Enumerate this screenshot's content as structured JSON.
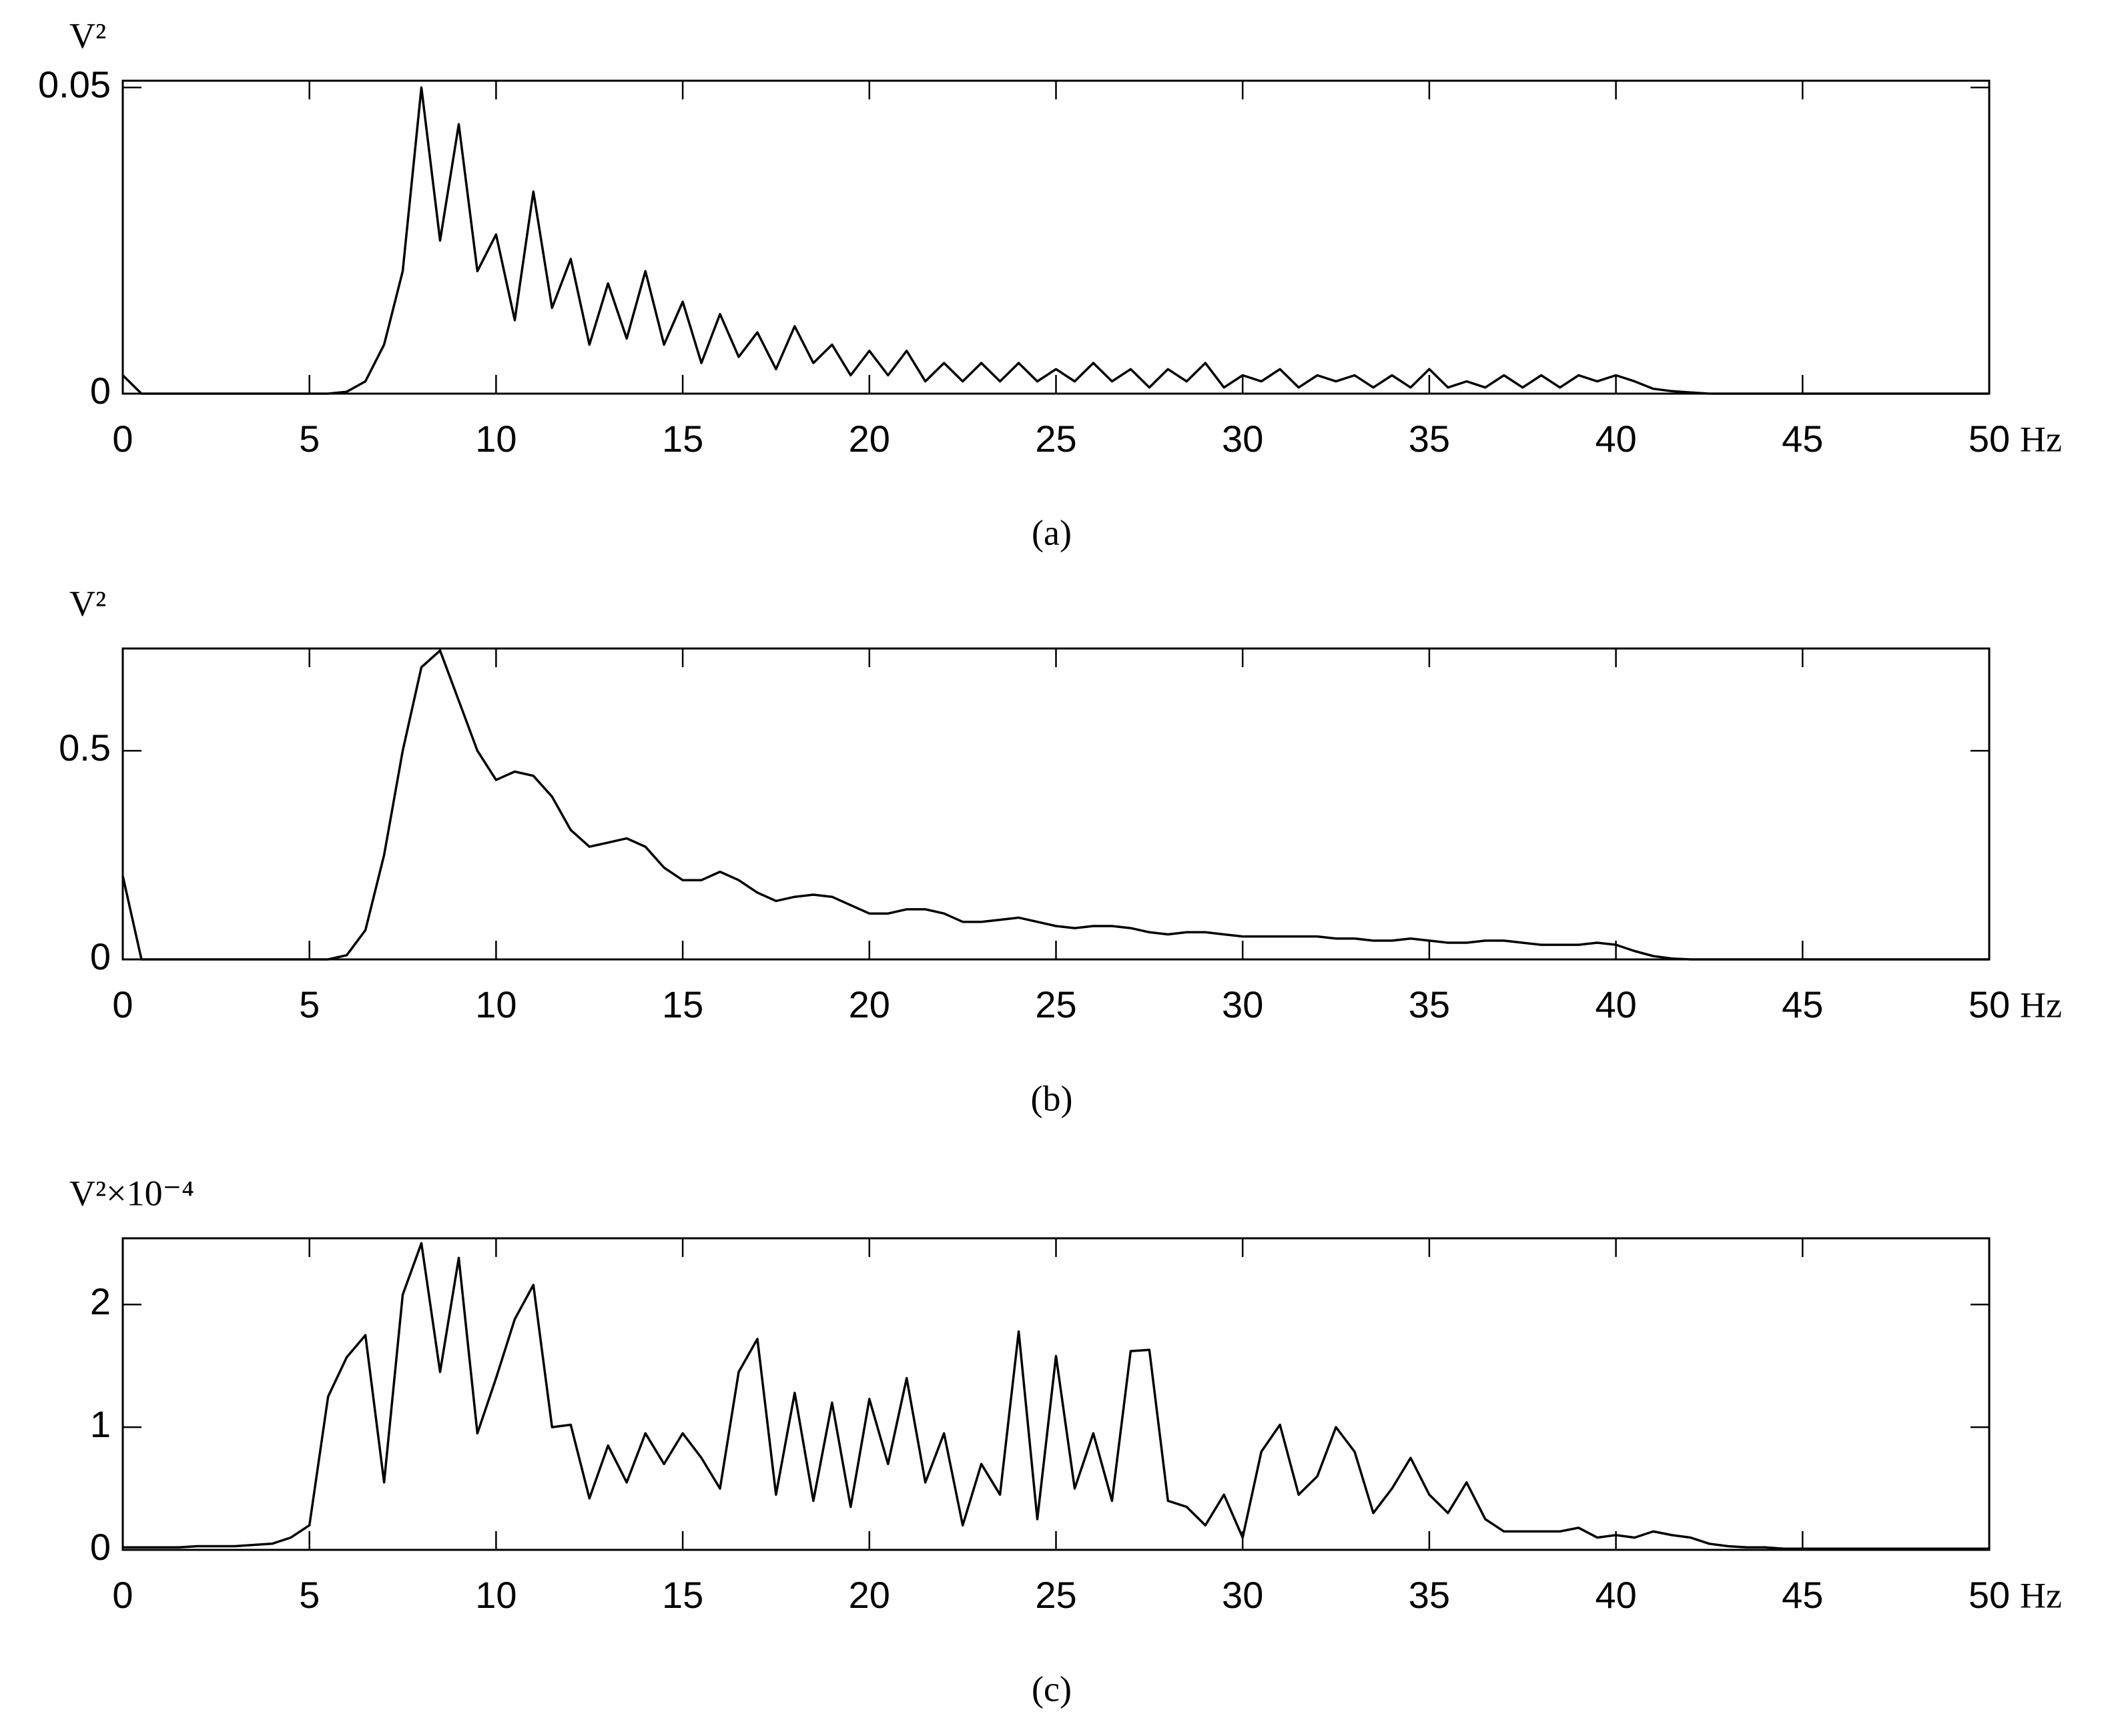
{
  "chart_data": [
    {
      "type": "line",
      "y_label": "V²",
      "x_unit": "Hz",
      "caption": "(a)",
      "color": "#000000",
      "xlim": [
        0,
        50
      ],
      "ylim": [
        0,
        0.0511
      ],
      "xticks": [
        0,
        5,
        10,
        15,
        20,
        25,
        30,
        35,
        40,
        45,
        50
      ],
      "yticks": [
        0,
        0.05
      ],
      "x": [
        0,
        0.5,
        1,
        1.5,
        2,
        2.5,
        3,
        3.5,
        4,
        4.5,
        5,
        5.5,
        6,
        6.5,
        7,
        7.5,
        8,
        8.5,
        9,
        9.5,
        10,
        10.5,
        11,
        11.5,
        12,
        12.5,
        13,
        13.5,
        14,
        14.5,
        15,
        15.5,
        16,
        16.5,
        17,
        17.5,
        18,
        18.5,
        19,
        19.5,
        20,
        20.5,
        21,
        21.5,
        22,
        22.5,
        23,
        23.5,
        24,
        24.5,
        25,
        25.5,
        26,
        26.5,
        27,
        27.5,
        28,
        28.5,
        29,
        29.5,
        30,
        30.5,
        31,
        31.5,
        32,
        32.5,
        33,
        33.5,
        34,
        34.5,
        35,
        35.5,
        36,
        36.5,
        37,
        37.5,
        38,
        38.5,
        39,
        39.5,
        40,
        40.5,
        41,
        41.5,
        42,
        42.5,
        43,
        43.5,
        44,
        44.5,
        45,
        45.5,
        46,
        46.5,
        47,
        47.5,
        48,
        48.5,
        49,
        49.5,
        50
      ],
      "values": [
        0.003,
        0,
        0,
        0,
        0,
        0,
        0,
        0,
        0,
        0,
        0,
        0,
        0.0003,
        0.002,
        0.008,
        0.02,
        0.05,
        0.025,
        0.044,
        0.02,
        0.026,
        0.012,
        0.033,
        0.014,
        0.022,
        0.008,
        0.018,
        0.009,
        0.02,
        0.008,
        0.015,
        0.005,
        0.013,
        0.006,
        0.01,
        0.004,
        0.011,
        0.005,
        0.008,
        0.003,
        0.007,
        0.003,
        0.007,
        0.002,
        0.005,
        0.002,
        0.005,
        0.002,
        0.005,
        0.002,
        0.004,
        0.002,
        0.005,
        0.002,
        0.004,
        0.001,
        0.004,
        0.002,
        0.005,
        0.001,
        0.003,
        0.002,
        0.004,
        0.001,
        0.003,
        0.002,
        0.003,
        0.001,
        0.003,
        0.001,
        0.004,
        0.001,
        0.002,
        0.001,
        0.003,
        0.001,
        0.003,
        0.001,
        0.003,
        0.002,
        0.003,
        0.002,
        0.0008,
        0.0004,
        0.0002,
        0,
        0,
        0,
        0,
        0,
        0,
        0,
        0,
        0,
        0,
        0,
        0,
        0,
        0,
        0,
        0
      ]
    },
    {
      "type": "line",
      "y_label": "V²",
      "x_unit": "Hz",
      "caption": "(b)",
      "color": "#000000",
      "xlim": [
        0,
        50
      ],
      "ylim": [
        0,
        0.745
      ],
      "xticks": [
        0,
        5,
        10,
        15,
        20,
        25,
        30,
        35,
        40,
        45,
        50
      ],
      "yticks": [
        0,
        0.5
      ],
      "x": [
        0,
        0.5,
        1,
        1.5,
        2,
        2.5,
        3,
        3.5,
        4,
        4.5,
        5,
        5.5,
        6,
        6.5,
        7,
        7.5,
        8,
        8.5,
        9,
        9.5,
        10,
        10.5,
        11,
        11.5,
        12,
        12.5,
        13,
        13.5,
        14,
        14.5,
        15,
        15.5,
        16,
        16.5,
        17,
        17.5,
        18,
        18.5,
        19,
        19.5,
        20,
        20.5,
        21,
        21.5,
        22,
        22.5,
        23,
        23.5,
        24,
        24.5,
        25,
        25.5,
        26,
        26.5,
        27,
        27.5,
        28,
        28.5,
        29,
        29.5,
        30,
        30.5,
        31,
        31.5,
        32,
        32.5,
        33,
        33.5,
        34,
        34.5,
        35,
        35.5,
        36,
        36.5,
        37,
        37.5,
        38,
        38.5,
        39,
        39.5,
        40,
        40.5,
        41,
        41.5,
        42,
        42.5,
        43,
        43.5,
        44,
        44.5,
        45,
        45.5,
        46,
        46.5,
        47,
        47.5,
        48,
        48.5,
        49,
        49.5,
        50
      ],
      "values": [
        0.2,
        0,
        0,
        0,
        0,
        0,
        0,
        0,
        0,
        0,
        0,
        0,
        0.01,
        0.07,
        0.25,
        0.5,
        0.7,
        0.74,
        0.62,
        0.5,
        0.43,
        0.45,
        0.44,
        0.39,
        0.31,
        0.27,
        0.28,
        0.29,
        0.27,
        0.22,
        0.19,
        0.19,
        0.21,
        0.19,
        0.16,
        0.14,
        0.15,
        0.155,
        0.15,
        0.13,
        0.11,
        0.11,
        0.12,
        0.12,
        0.11,
        0.09,
        0.09,
        0.095,
        0.1,
        0.09,
        0.08,
        0.075,
        0.08,
        0.08,
        0.075,
        0.065,
        0.06,
        0.065,
        0.065,
        0.06,
        0.055,
        0.055,
        0.055,
        0.055,
        0.055,
        0.05,
        0.05,
        0.045,
        0.045,
        0.05,
        0.045,
        0.04,
        0.04,
        0.045,
        0.045,
        0.04,
        0.035,
        0.035,
        0.035,
        0.04,
        0.035,
        0.02,
        0.008,
        0.002,
        0,
        0,
        0,
        0,
        0,
        0,
        0,
        0,
        0,
        0,
        0,
        0,
        0,
        0,
        0,
        0,
        0
      ]
    },
    {
      "type": "line",
      "y_label": "V²×10⁻⁴",
      "x_unit": "Hz",
      "caption": "(c)",
      "color": "#000000",
      "xlim": [
        0,
        50
      ],
      "ylim": [
        0,
        2.54
      ],
      "xticks": [
        0,
        5,
        10,
        15,
        20,
        25,
        30,
        35,
        40,
        45,
        50
      ],
      "yticks": [
        0,
        1,
        2
      ],
      "x": [
        0,
        0.5,
        1,
        1.5,
        2,
        2.5,
        3,
        3.5,
        4,
        4.5,
        5,
        5.5,
        6,
        6.5,
        7,
        7.5,
        8,
        8.5,
        9,
        9.5,
        10,
        10.5,
        11,
        11.5,
        12,
        12.5,
        13,
        13.5,
        14,
        14.5,
        15,
        15.5,
        16,
        16.5,
        17,
        17.5,
        18,
        18.5,
        19,
        19.5,
        20,
        20.5,
        21,
        21.5,
        22,
        22.5,
        23,
        23.5,
        24,
        24.5,
        25,
        25.5,
        26,
        26.5,
        27,
        27.5,
        28,
        28.5,
        29,
        29.5,
        30,
        30.5,
        31,
        31.5,
        32,
        32.5,
        33,
        33.5,
        34,
        34.5,
        35,
        35.5,
        36,
        36.5,
        37,
        37.5,
        38,
        38.5,
        39,
        39.5,
        40,
        40.5,
        41,
        41.5,
        42,
        42.5,
        43,
        43.5,
        44,
        44.5,
        45,
        45.5,
        46,
        46.5,
        47,
        47.5,
        48,
        48.5,
        49,
        49.5,
        50
      ],
      "values": [
        0.02,
        0.02,
        0.02,
        0.02,
        0.03,
        0.03,
        0.03,
        0.04,
        0.05,
        0.1,
        0.2,
        1.25,
        1.57,
        1.75,
        0.55,
        2.08,
        2.5,
        1.45,
        2.38,
        0.95,
        1.4,
        1.88,
        2.16,
        1.0,
        1.02,
        0.42,
        0.85,
        0.55,
        0.95,
        0.7,
        0.95,
        0.75,
        0.5,
        1.45,
        1.72,
        0.45,
        1.28,
        0.4,
        1.2,
        0.35,
        1.23,
        0.7,
        1.4,
        0.55,
        0.95,
        0.2,
        0.7,
        0.45,
        1.78,
        0.25,
        1.58,
        0.5,
        0.95,
        0.4,
        1.62,
        1.63,
        0.4,
        0.35,
        0.2,
        0.45,
        0.1,
        0.8,
        1.02,
        0.45,
        0.6,
        1.0,
        0.8,
        0.3,
        0.5,
        0.75,
        0.45,
        0.3,
        0.55,
        0.25,
        0.15,
        0.15,
        0.15,
        0.15,
        0.18,
        0.1,
        0.12,
        0.1,
        0.15,
        0.12,
        0.1,
        0.05,
        0.03,
        0.02,
        0.02,
        0.01,
        0.01,
        0.01,
        0.01,
        0.01,
        0.01,
        0.01,
        0.01,
        0.01,
        0.01,
        0.01,
        0.01
      ]
    }
  ]
}
